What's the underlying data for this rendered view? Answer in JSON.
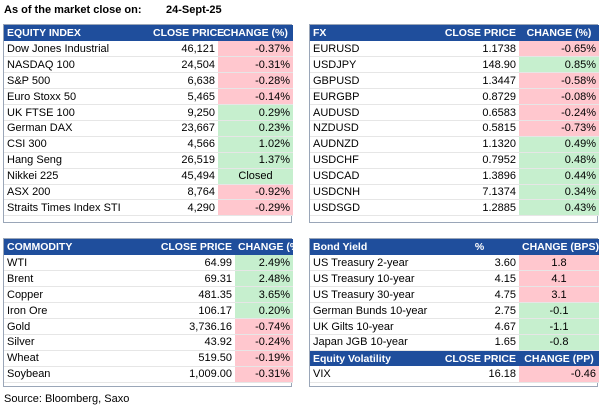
{
  "header": {
    "label": "As of the market close on:",
    "date": "24-Sept-25"
  },
  "equity": {
    "headers": [
      "EQUITY INDEX",
      "CLOSE PRICE",
      "CHANGE (%)"
    ],
    "rows": [
      {
        "name": "Dow Jones Industrial",
        "price": "46,121",
        "change": "-0.37%",
        "dir": "neg"
      },
      {
        "name": "NASDAQ 100",
        "price": "24,504",
        "change": "-0.31%",
        "dir": "neg"
      },
      {
        "name": "S&P 500",
        "price": "6,638",
        "change": "-0.28%",
        "dir": "neg"
      },
      {
        "name": "Euro Stoxx 50",
        "price": "5,465",
        "change": "-0.14%",
        "dir": "neg"
      },
      {
        "name": "UK FTSE 100",
        "price": "9,250",
        "change": "0.29%",
        "dir": "pos"
      },
      {
        "name": "German DAX",
        "price": "23,667",
        "change": "0.23%",
        "dir": "pos"
      },
      {
        "name": "CSI 300",
        "price": "4,566",
        "change": "1.02%",
        "dir": "pos"
      },
      {
        "name": "Hang Seng",
        "price": "26,519",
        "change": "1.37%",
        "dir": "pos"
      },
      {
        "name": "Nikkei 225",
        "price": "45,494",
        "change": "Closed",
        "dir": "closed"
      },
      {
        "name": "ASX 200",
        "price": "8,764",
        "change": "-0.92%",
        "dir": "neg"
      },
      {
        "name": "Straits Times Index STI",
        "price": "4,290",
        "change": "-0.29%",
        "dir": "neg"
      }
    ]
  },
  "fx": {
    "headers": [
      "FX",
      "CLOSE PRICE",
      "CHANGE (%)"
    ],
    "rows": [
      {
        "name": "EURUSD",
        "price": "1.1738",
        "change": "-0.65%",
        "dir": "neg"
      },
      {
        "name": "USDJPY",
        "price": "148.90",
        "change": "0.85%",
        "dir": "pos"
      },
      {
        "name": "GBPUSD",
        "price": "1.3447",
        "change": "-0.58%",
        "dir": "neg"
      },
      {
        "name": "EURGBP",
        "price": "0.8729",
        "change": "-0.08%",
        "dir": "neg"
      },
      {
        "name": "AUDUSD",
        "price": "0.6583",
        "change": "-0.24%",
        "dir": "neg"
      },
      {
        "name": "NZDUSD",
        "price": "0.5815",
        "change": "-0.73%",
        "dir": "neg"
      },
      {
        "name": "AUDNZD",
        "price": "1.1320",
        "change": "0.49%",
        "dir": "pos"
      },
      {
        "name": "USDCHF",
        "price": "0.7952",
        "change": "0.48%",
        "dir": "pos"
      },
      {
        "name": "USDCAD",
        "price": "1.3896",
        "change": "0.44%",
        "dir": "pos"
      },
      {
        "name": "USDCNH",
        "price": "7.1374",
        "change": "0.34%",
        "dir": "pos"
      },
      {
        "name": "USDSGD",
        "price": "1.2885",
        "change": "0.43%",
        "dir": "pos"
      }
    ]
  },
  "commodity": {
    "headers": [
      "COMMODITY",
      "CLOSE PRICE",
      "CHANGE (%)"
    ],
    "rows": [
      {
        "name": "WTI",
        "price": "64.99",
        "change": "2.49%",
        "dir": "pos"
      },
      {
        "name": "Brent",
        "price": "69.31",
        "change": "2.48%",
        "dir": "pos"
      },
      {
        "name": "Copper",
        "price": "481.35",
        "change": "3.65%",
        "dir": "pos"
      },
      {
        "name": "Iron Ore",
        "price": "106.17",
        "change": "0.20%",
        "dir": "pos"
      },
      {
        "name": "Gold",
        "price": "3,736.16",
        "change": "-0.74%",
        "dir": "neg"
      },
      {
        "name": "Silver",
        "price": "43.92",
        "change": "-0.24%",
        "dir": "neg"
      },
      {
        "name": "Wheat",
        "price": "519.50",
        "change": "-0.19%",
        "dir": "neg"
      },
      {
        "name": "Soybean",
        "price": "1,009.00",
        "change": "-0.31%",
        "dir": "neg"
      }
    ]
  },
  "bond": {
    "headers": [
      "Bond Yield",
      "%",
      "CHANGE (BPS)"
    ],
    "rows": [
      {
        "name": "US Treasury 2-year",
        "price": "3.60",
        "change": "1.8",
        "dir": "neg-t"
      },
      {
        "name": "US Treasury 10-year",
        "price": "4.15",
        "change": "4.1",
        "dir": "neg-t"
      },
      {
        "name": "US Treasury 30-year",
        "price": "4.75",
        "change": "3.1",
        "dir": "neg-t"
      },
      {
        "name": "German Bunds 10-year",
        "price": "2.75",
        "change": "-0.1",
        "dir": "pos-t"
      },
      {
        "name": "UK Gilts 10-year",
        "price": "4.67",
        "change": "-1.1",
        "dir": "pos-t"
      },
      {
        "name": "Japan JGB 10-year",
        "price": "1.65",
        "change": "-0.8",
        "dir": "pos-t"
      }
    ]
  },
  "volatility": {
    "headers": [
      "Equity Volatility",
      "CLOSE PRICE",
      "CHANGE (PP)"
    ],
    "rows": [
      {
        "name": "VIX",
        "price": "16.18",
        "change": "-0.46",
        "dir": "neg"
      }
    ]
  },
  "source": "Source: Bloomberg, Saxo",
  "colors": {
    "header_bg": "#1f4e9c",
    "positive_bg": "#c6efce",
    "negative_bg": "#ffc7ce"
  }
}
